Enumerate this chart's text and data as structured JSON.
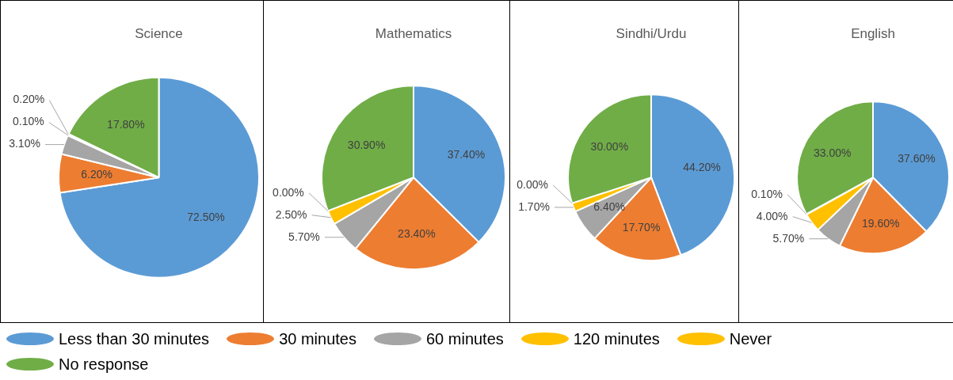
{
  "chart_data": [
    {
      "type": "pie",
      "title": "Science",
      "categories": [
        "Less than 30 minutes",
        "30 minutes",
        "60 minutes",
        "120 minutes",
        "Never",
        "No response"
      ],
      "values": [
        72.5,
        6.2,
        3.1,
        0.1,
        0.2,
        17.8
      ],
      "value_labels": [
        "72.50%",
        "6.20%",
        "3.10%",
        "0.10%",
        "0.20%",
        "17.80%"
      ],
      "colors": [
        "#5b9bd5",
        "#ed7d31",
        "#a5a5a5",
        "#ffc000",
        "#ffc000",
        "#70ad47"
      ],
      "legend": "bottom"
    },
    {
      "type": "pie",
      "title": "Mathematics",
      "categories": [
        null,
        null,
        null,
        null,
        null,
        null
      ],
      "values": [
        37.4,
        23.4,
        5.7,
        2.5,
        0,
        30.9
      ],
      "value_labels": [
        "37.40%",
        "23.40%",
        "5.70%",
        "2.50%",
        "0.00%",
        "30.90%"
      ],
      "colors": [
        "#5b9bd5",
        "#ed7d31",
        "#a5a5a5",
        "#ffc000",
        "#ffc000",
        "#70ad47"
      ]
    },
    {
      "type": "pie",
      "title": "Sindhi/Urdu",
      "categories": [
        null,
        null,
        null,
        null,
        null,
        null
      ],
      "values": [
        44.2,
        17.7,
        6.4,
        1.7,
        0,
        30
      ],
      "value_labels": [
        "44.20%",
        "17.70%",
        "6.40%",
        "1.70%",
        "0.00%",
        "30.00%"
      ],
      "colors": [
        "#5b9bd5",
        "#ed7d31",
        "#a5a5a5",
        "#ffc000",
        "#ffc000",
        "#70ad47"
      ]
    },
    {
      "type": "pie",
      "title": "English",
      "categories": [
        null,
        null,
        null,
        null,
        null,
        null
      ],
      "values": [
        37.6,
        19.6,
        5.7,
        4,
        0.1,
        33
      ],
      "value_labels": [
        "37.60%",
        "19.60%",
        "5.70%",
        "4.00%",
        "0.10%",
        "33.00%"
      ],
      "colors": [
        "#5b9bd5",
        "#ed7d31",
        "#a5a5a5",
        "#ffc000",
        "#ffc000",
        "#70ad47"
      ]
    }
  ]
}
